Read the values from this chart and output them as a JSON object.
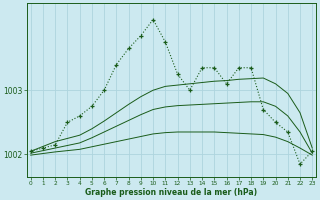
{
  "xlabel": "Graphe pression niveau de la mer (hPa)",
  "background_color": "#cce9f0",
  "grid_color": "#aed4de",
  "line_color": "#1a5c1a",
  "x_ticks": [
    0,
    1,
    2,
    3,
    4,
    5,
    6,
    7,
    8,
    9,
    10,
    11,
    12,
    13,
    14,
    15,
    16,
    17,
    18,
    19,
    20,
    21,
    22,
    23
  ],
  "y_ticks": [
    1002,
    1003
  ],
  "ylim": [
    1001.65,
    1004.35
  ],
  "xlim": [
    -0.3,
    23.3
  ],
  "main_line": {
    "x": [
      0,
      1,
      2,
      3,
      4,
      5,
      6,
      7,
      8,
      9,
      10,
      11,
      12,
      13,
      14,
      15,
      16,
      17,
      18,
      19,
      20,
      21,
      22,
      23
    ],
    "y": [
      1002.05,
      1002.1,
      1002.15,
      1002.5,
      1002.6,
      1002.75,
      1003.0,
      1003.4,
      1003.65,
      1003.85,
      1004.1,
      1003.75,
      1003.25,
      1003.0,
      1003.35,
      1003.35,
      1003.1,
      1003.35,
      1003.35,
      1002.7,
      1002.5,
      1002.35,
      1001.85,
      1002.05
    ]
  },
  "upper_band": {
    "x": [
      0,
      2,
      3,
      4,
      5,
      6,
      7,
      8,
      9,
      10,
      11,
      12,
      13,
      14,
      15,
      16,
      17,
      18,
      19,
      20,
      21,
      22,
      23
    ],
    "y": [
      1002.05,
      1002.2,
      1002.25,
      1002.3,
      1002.4,
      1002.52,
      1002.65,
      1002.78,
      1002.9,
      1003.0,
      1003.06,
      1003.08,
      1003.1,
      1003.12,
      1003.14,
      1003.15,
      1003.17,
      1003.18,
      1003.19,
      1003.1,
      1002.95,
      1002.65,
      1002.1
    ]
  },
  "mid_band": {
    "x": [
      0,
      2,
      3,
      4,
      5,
      6,
      7,
      8,
      9,
      10,
      11,
      12,
      13,
      14,
      15,
      16,
      17,
      18,
      19,
      20,
      21,
      22,
      23
    ],
    "y": [
      1002.02,
      1002.1,
      1002.14,
      1002.18,
      1002.26,
      1002.35,
      1002.44,
      1002.53,
      1002.62,
      1002.7,
      1002.74,
      1002.76,
      1002.77,
      1002.78,
      1002.79,
      1002.8,
      1002.81,
      1002.82,
      1002.82,
      1002.75,
      1002.6,
      1002.35,
      1002.02
    ]
  },
  "lower_band": {
    "x": [
      0,
      2,
      3,
      4,
      5,
      6,
      7,
      8,
      9,
      10,
      11,
      12,
      13,
      14,
      15,
      16,
      17,
      18,
      19,
      20,
      21,
      22,
      23
    ],
    "y": [
      1001.99,
      1002.04,
      1002.06,
      1002.08,
      1002.12,
      1002.16,
      1002.2,
      1002.24,
      1002.28,
      1002.32,
      1002.34,
      1002.35,
      1002.35,
      1002.35,
      1002.35,
      1002.34,
      1002.33,
      1002.32,
      1002.31,
      1002.27,
      1002.2,
      1002.1,
      1001.99
    ]
  }
}
